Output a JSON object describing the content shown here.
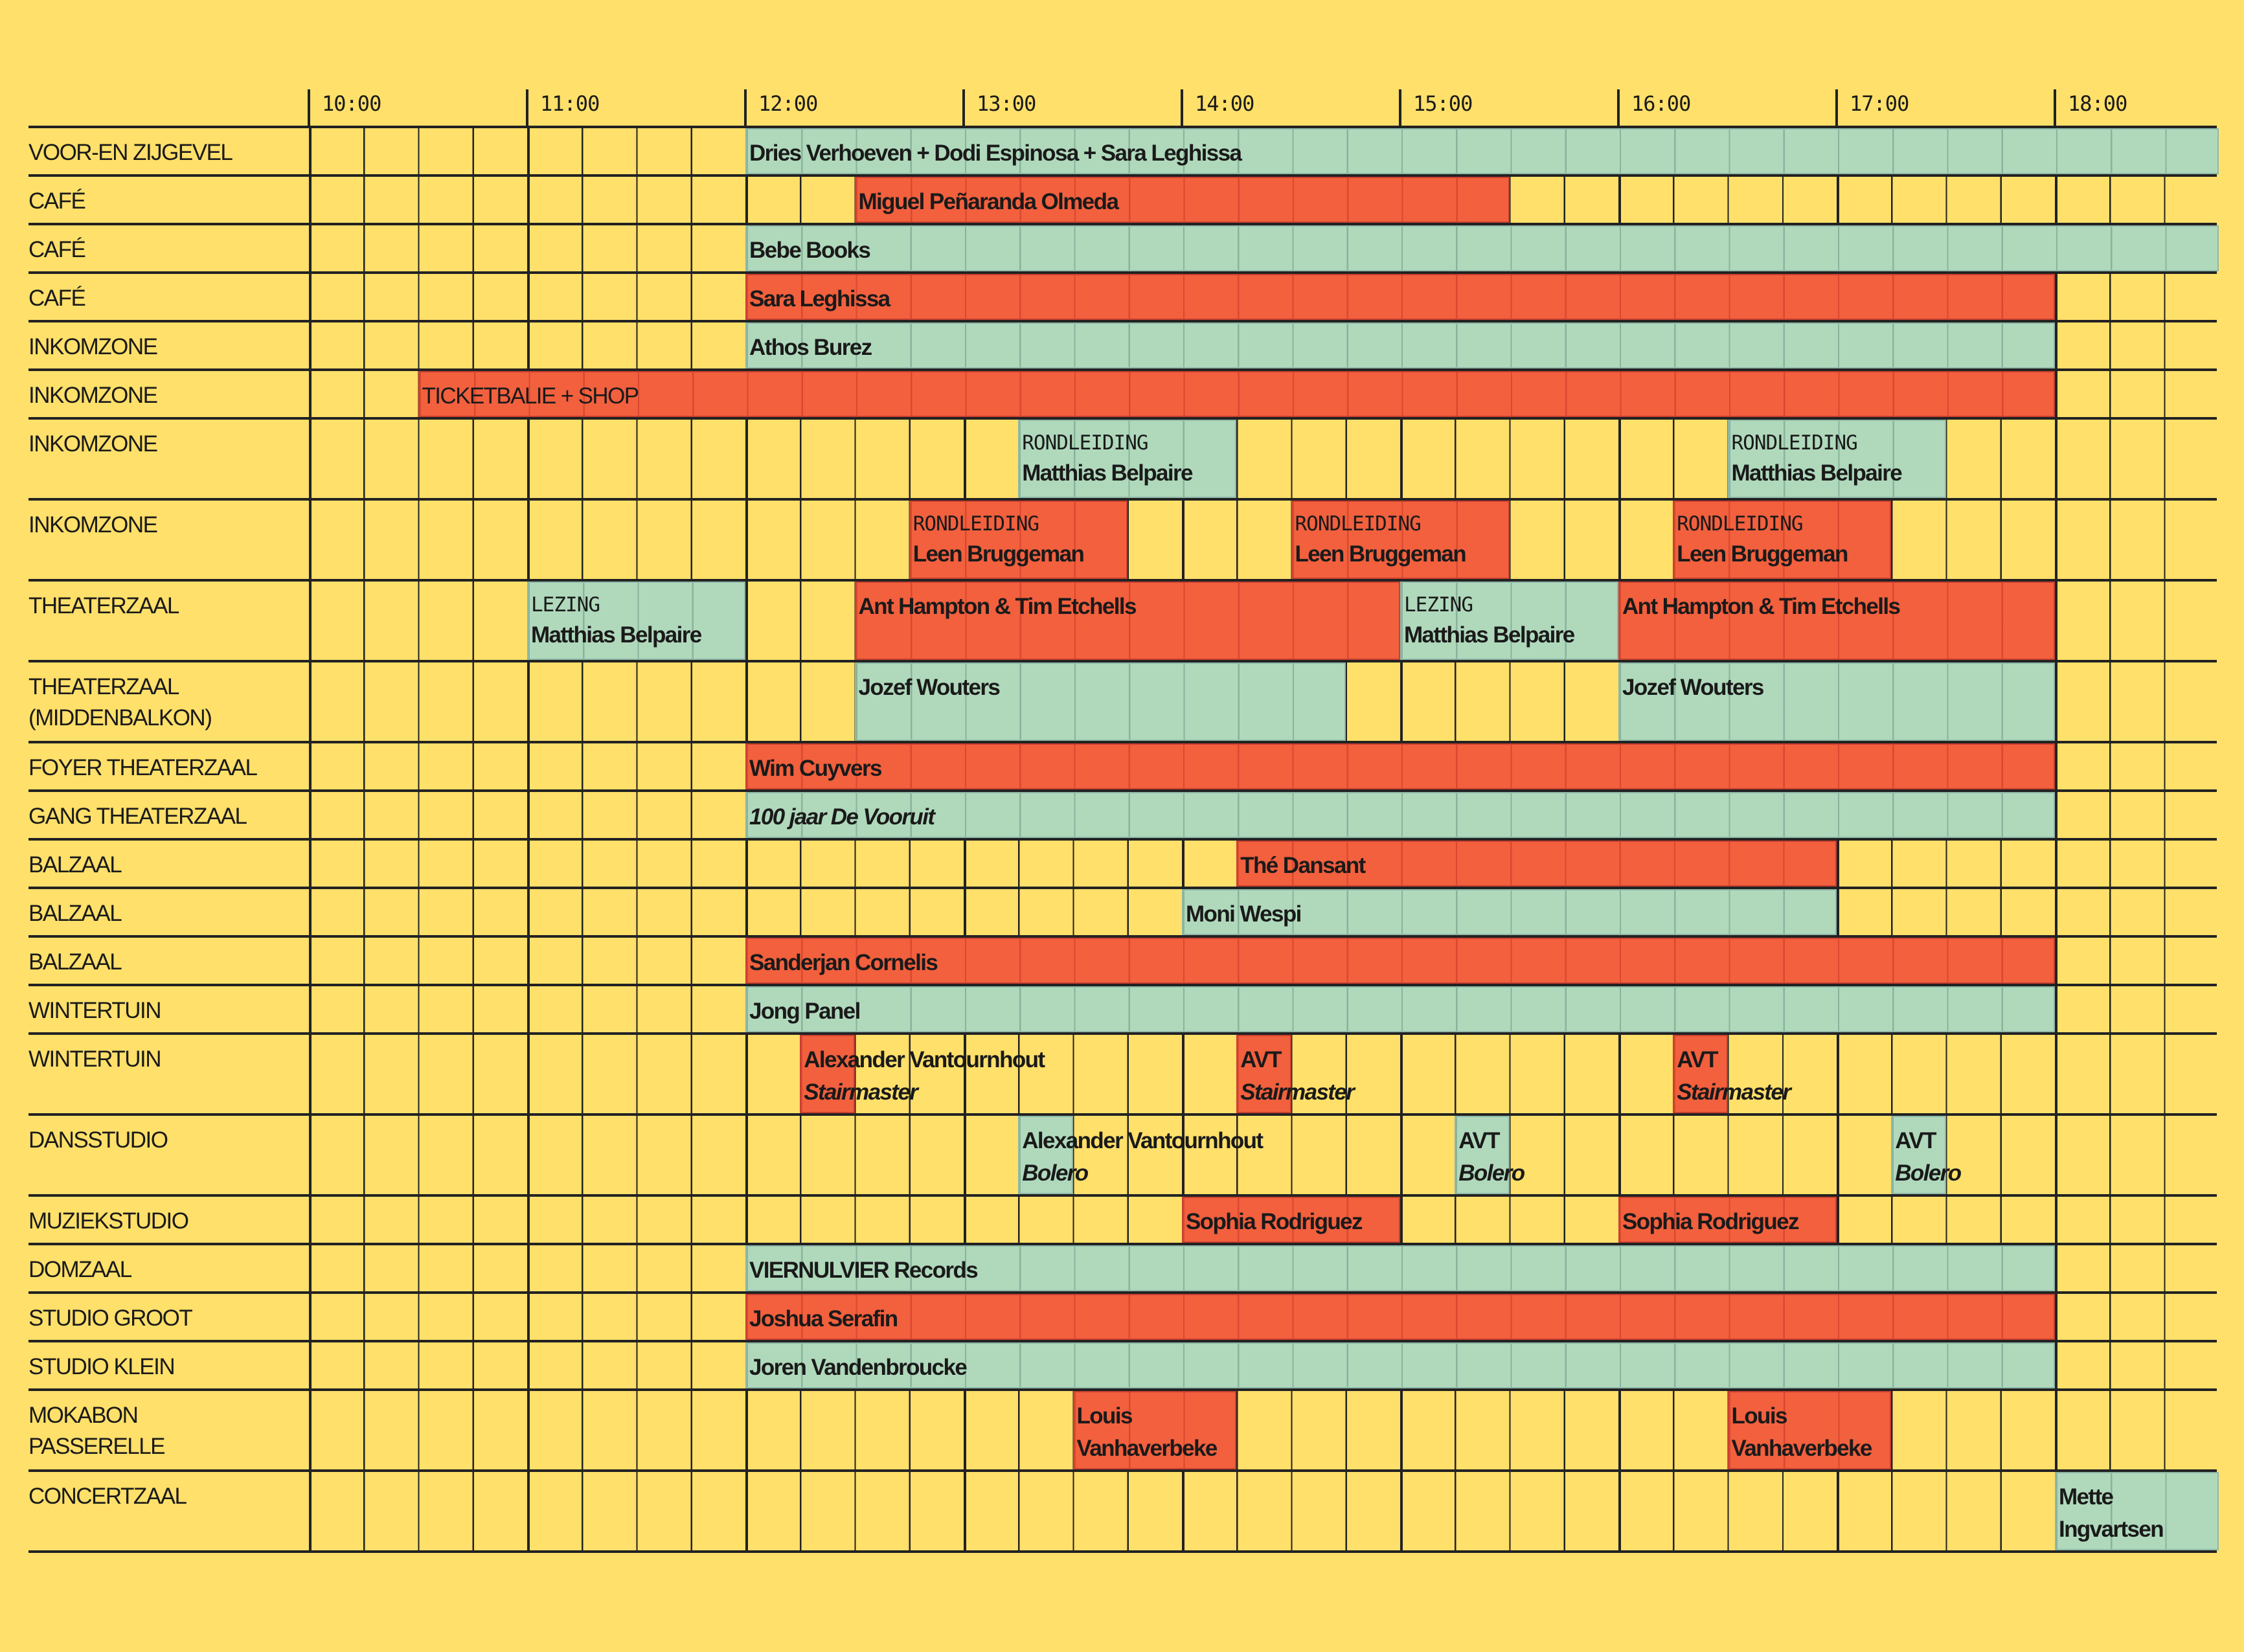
{
  "colors": {
    "background": "#FFE06A",
    "green": "#B0D9BC",
    "red": "#F2603E",
    "grid": "#222222"
  },
  "hours": [
    "10:00",
    "11:00",
    "12:00",
    "13:00",
    "14:00",
    "15:00",
    "16:00",
    "17:00",
    "18:00"
  ],
  "rooms": [
    {
      "name": "VOOR-EN ZIJGEVEL",
      "events": [
        {
          "title": "Dries Verhoeven + Dodi Espinosa + Sara Leghissa",
          "start": "12:00",
          "end": "18:45",
          "color": "green"
        }
      ]
    },
    {
      "name": "CAFÉ",
      "events": [
        {
          "title": "Miguel Peñaranda Olmeda",
          "start": "12:30",
          "end": "15:30",
          "color": "red"
        }
      ]
    },
    {
      "name": "CAFÉ",
      "events": [
        {
          "title": "Bebe Books",
          "start": "12:00",
          "end": "18:45",
          "color": "green"
        }
      ]
    },
    {
      "name": "CAFÉ",
      "events": [
        {
          "title": "Sara Leghissa",
          "start": "12:00",
          "end": "18:00",
          "color": "red"
        }
      ]
    },
    {
      "name": "INKOMZONE",
      "events": [
        {
          "title": "Athos Burez",
          "start": "12:00",
          "end": "18:00",
          "color": "green"
        }
      ]
    },
    {
      "name": "INKOMZONE",
      "events": [
        {
          "title": "TICKETBALIE + SHOP",
          "start": "10:30",
          "end": "18:00",
          "color": "red",
          "regular": true
        }
      ]
    },
    {
      "name": "INKOMZONE",
      "events": [
        {
          "kind": "RONDLEIDING",
          "title": "Matthias Belpaire",
          "start": "13:15",
          "end": "14:15",
          "color": "green"
        },
        {
          "kind": "RONDLEIDING",
          "title": "Matthias Belpaire",
          "start": "16:30",
          "end": "17:30",
          "color": "green"
        }
      ]
    },
    {
      "name": "INKOMZONE",
      "events": [
        {
          "kind": "RONDLEIDING",
          "title": "Leen Bruggeman",
          "start": "12:45",
          "end": "13:45",
          "color": "red"
        },
        {
          "kind": "RONDLEIDING",
          "title": "Leen Bruggeman",
          "start": "14:30",
          "end": "15:30",
          "color": "red"
        },
        {
          "kind": "RONDLEIDING",
          "title": "Leen Bruggeman",
          "start": "16:15",
          "end": "17:15",
          "color": "red"
        }
      ]
    },
    {
      "name": "THEATERZAAL",
      "double": true,
      "events": [
        {
          "kind": "LEZING",
          "title": "Matthias Belpaire",
          "start": "11:00",
          "end": "12:00",
          "color": "green"
        },
        {
          "title": "Ant Hampton & Tim Etchells",
          "start": "12:30",
          "end": "15:00",
          "color": "red"
        },
        {
          "kind": "LEZING",
          "title": "Matthias Belpaire",
          "start": "15:00",
          "end": "16:00",
          "color": "green"
        },
        {
          "title": "Ant Hampton & Tim Etchells",
          "start": "16:00",
          "end": "18:00",
          "color": "red"
        }
      ]
    },
    {
      "name": "THEATERZAAL\n(MIDDENBALKON)",
      "double": true,
      "events": [
        {
          "title": "Jozef Wouters",
          "start": "12:30",
          "end": "14:45",
          "color": "green"
        },
        {
          "title": "Jozef Wouters",
          "start": "16:00",
          "end": "18:00",
          "color": "green"
        }
      ]
    },
    {
      "name": "FOYER THEATERZAAL",
      "events": [
        {
          "title": "Wim Cuyvers",
          "start": "12:00",
          "end": "18:00",
          "color": "red"
        }
      ]
    },
    {
      "name": "GANG THEATERZAAL",
      "events": [
        {
          "title": "100 jaar De Vooruit",
          "start": "12:00",
          "end": "18:00",
          "color": "green",
          "italic": true
        }
      ]
    },
    {
      "name": "BALZAAL",
      "events": [
        {
          "title": "Thé Dansant",
          "start": "14:15",
          "end": "17:00",
          "color": "red"
        }
      ]
    },
    {
      "name": "BALZAAL",
      "events": [
        {
          "title": "Moni Wespi",
          "start": "14:00",
          "end": "17:00",
          "color": "green"
        }
      ]
    },
    {
      "name": "BALZAAL",
      "events": [
        {
          "title": "Sanderjan Cornelis",
          "start": "12:00",
          "end": "18:00",
          "color": "red"
        }
      ]
    },
    {
      "name": "WINTERTUIN",
      "events": [
        {
          "title": "Jong Panel",
          "start": "12:00",
          "end": "18:00",
          "color": "green"
        }
      ]
    },
    {
      "name": "WINTERTUIN",
      "events": [
        {
          "title": "Alexander Vantournhout",
          "sub": "Stairmaster",
          "start": "12:15",
          "end": "12:30",
          "color": "red"
        },
        {
          "title": "AVT",
          "sub": "Stairmaster",
          "start": "14:15",
          "end": "14:30",
          "color": "red"
        },
        {
          "title": "AVT",
          "sub": "Stairmaster",
          "start": "16:15",
          "end": "16:30",
          "color": "red"
        }
      ]
    },
    {
      "name": "DANSSTUDIO",
      "events": [
        {
          "title": "Alexander Vantournhout",
          "sub": "Bolero",
          "start": "13:15",
          "end": "13:30",
          "color": "green"
        },
        {
          "title": "AVT",
          "sub": "Bolero",
          "start": "15:15",
          "end": "15:30",
          "color": "green"
        },
        {
          "title": "AVT",
          "sub": "Bolero",
          "start": "17:15",
          "end": "17:30",
          "color": "green"
        }
      ]
    },
    {
      "name": "MUZIEKSTUDIO",
      "events": [
        {
          "title": "Sophia Rodriguez",
          "start": "14:00",
          "end": "15:00",
          "color": "red"
        },
        {
          "title": "Sophia Rodriguez",
          "start": "16:00",
          "end": "17:00",
          "color": "red"
        }
      ]
    },
    {
      "name": "DOMZAAL",
      "events": [
        {
          "title": "VIERNULVIER Records",
          "start": "12:00",
          "end": "18:00",
          "color": "green"
        }
      ]
    },
    {
      "name": "STUDIO GROOT",
      "events": [
        {
          "title": "Joshua Serafin",
          "start": "12:00",
          "end": "18:00",
          "color": "red"
        }
      ]
    },
    {
      "name": "STUDIO KLEIN",
      "events": [
        {
          "title": "Joren Vandenbroucke",
          "start": "12:00",
          "end": "18:00",
          "color": "green"
        }
      ]
    },
    {
      "name": "MOKABON\nPASSERELLE",
      "double": true,
      "events": [
        {
          "title": "Louis\nVanhaverbeke",
          "start": "13:30",
          "end": "14:15",
          "color": "red"
        },
        {
          "title": "Louis\nVanhaverbeke",
          "start": "16:30",
          "end": "17:15",
          "color": "red"
        }
      ]
    },
    {
      "name": "CONCERTZAAL",
      "double": true,
      "events": [
        {
          "title": "Mette\nIngvartsen",
          "start": "18:00",
          "end": "18:45",
          "color": "green"
        }
      ]
    }
  ]
}
